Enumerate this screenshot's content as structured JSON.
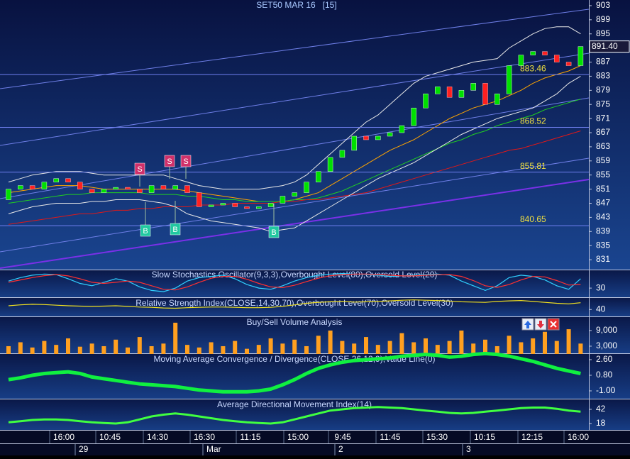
{
  "chart_data": [
    {
      "type": "candlestick",
      "title": "SET50 MAR 16   [15]",
      "open": [
        848,
        851,
        852,
        851,
        853,
        854,
        853,
        851,
        850,
        851,
        851.5,
        851,
        850,
        852,
        851,
        852,
        850,
        846,
        846.5,
        847,
        846,
        845.5,
        846,
        847,
        849,
        850,
        853,
        856,
        860,
        862,
        866,
        865,
        866,
        867,
        869,
        874,
        878,
        880,
        877,
        879,
        881,
        875,
        878,
        886,
        889,
        890,
        889,
        887,
        886
      ],
      "close": [
        851,
        852,
        851,
        853,
        854,
        853,
        851,
        850,
        851,
        851.5,
        851,
        850,
        852,
        851,
        852,
        850,
        846,
        846.5,
        847,
        846,
        845.5,
        846,
        847,
        849,
        850,
        853,
        856,
        860,
        862,
        866,
        865,
        866,
        867,
        869,
        874,
        878,
        880,
        877,
        879,
        881,
        875,
        878,
        886,
        889,
        890,
        889,
        887,
        886,
        891.4
      ],
      "up_color": "#00e000",
      "down_color": "#ff2020",
      "lines": [
        {
          "color": "#ffa500",
          "values": [
            850,
            850.5,
            851,
            851.5,
            852,
            852,
            852,
            851.5,
            851,
            851,
            851,
            851,
            851,
            851,
            851,
            850.5,
            850,
            849.5,
            849,
            848.5,
            848,
            847.5,
            847.5,
            847.5,
            848,
            849,
            850,
            852,
            854,
            856,
            858,
            860,
            862,
            863.5,
            865,
            867,
            869,
            871,
            872.5,
            874,
            875,
            876,
            877.5,
            879,
            881,
            882.5,
            883.5,
            884.5,
            886
          ]
        },
        {
          "color": "#20d020",
          "values": [
            847,
            847.5,
            848,
            848.5,
            849,
            849.5,
            849.5,
            850,
            850,
            850,
            850,
            850,
            849.5,
            849.5,
            849.5,
            849,
            849,
            848.5,
            848,
            848,
            847.5,
            847.5,
            847.5,
            847.5,
            848,
            848,
            848.5,
            849.5,
            850.5,
            852,
            853.5,
            855,
            856.5,
            858,
            859.5,
            861,
            862.5,
            864,
            865,
            866.5,
            867.5,
            869,
            870,
            871,
            872,
            873.5,
            874.5,
            875.5,
            876.5
          ]
        },
        {
          "color": "#e01818",
          "values": [
            841,
            841.5,
            842,
            842.5,
            843,
            843.5,
            844,
            844,
            844.5,
            845,
            845,
            845.5,
            845.5,
            846,
            846,
            846,
            846.5,
            846.5,
            846.5,
            847,
            847,
            847,
            847,
            847.5,
            847.5,
            848,
            848,
            848.5,
            849,
            849.5,
            850,
            851,
            852,
            853,
            854,
            855,
            856,
            857,
            858,
            859,
            860,
            861,
            862,
            862.5,
            863.5,
            864.5,
            865.5,
            866.5,
            867.5
          ]
        },
        {
          "color": "#e8e8e8",
          "values": [
            853,
            854,
            855,
            855.5,
            856,
            856,
            856,
            855.5,
            855,
            855,
            855,
            855,
            855,
            855,
            854,
            853,
            852,
            851.5,
            851,
            851,
            851,
            851,
            851.5,
            852,
            853,
            855,
            858,
            861,
            864,
            867,
            870,
            872,
            875,
            878,
            881,
            883,
            884,
            885,
            886,
            887,
            887.5,
            888,
            891,
            893,
            895,
            896.5,
            897,
            897,
            895
          ]
        },
        {
          "color": "#e8e8e8",
          "values": [
            844,
            845,
            846,
            846.5,
            847,
            847,
            847,
            847.5,
            847.5,
            848,
            848,
            848,
            847.5,
            847,
            846,
            844,
            843,
            842,
            841.5,
            841,
            840.5,
            840,
            839,
            839.5,
            840,
            842,
            844,
            846,
            848,
            850,
            852,
            854,
            855.5,
            857,
            858.5,
            860.5,
            862.5,
            864.5,
            866.5,
            868,
            869.5,
            871,
            872,
            873,
            874,
            876,
            878,
            881,
            883
          ]
        }
      ],
      "levels": [
        883.46,
        868.52,
        855.81,
        840.65
      ],
      "last_price": {
        "value": 891.4,
        "label": "891.40"
      },
      "signals": [
        "S",
        "S",
        "S",
        "B",
        "B",
        "B"
      ],
      "ylim": [
        828.2,
        904.6
      ],
      "yticks": [
        903,
        899,
        895,
        891,
        887,
        883,
        879,
        875,
        871,
        867,
        863,
        859,
        855,
        851,
        847,
        843,
        839,
        835,
        831
      ],
      "time_labels": [
        "16:00",
        "10:45",
        "14:30",
        "16:30",
        "11:15",
        "15:00",
        "9:45",
        "11:45",
        "15:30",
        "10:15",
        "12:15",
        "16:00"
      ],
      "date_labels": [
        "29",
        "Mar",
        "2",
        "3"
      ]
    },
    {
      "type": "line",
      "title": "Slow Stochastics Oscillator(9,3,3),Overbought Level(80),Oversold Level(20)",
      "series": [
        {
          "color": "#30d0ff",
          "values": [
            60,
            75,
            85,
            90,
            88,
            70,
            50,
            40,
            55,
            70,
            60,
            35,
            20,
            15,
            30,
            60,
            75,
            80,
            85,
            70,
            45,
            30,
            25,
            40,
            60,
            75,
            85,
            90,
            92,
            90,
            88,
            85,
            80,
            82,
            85,
            88,
            90,
            85,
            60,
            40,
            20,
            40,
            75,
            85,
            80,
            65,
            40,
            25,
            70
          ]
        },
        {
          "color": "#ff3030",
          "values": [
            55,
            65,
            75,
            83,
            88,
            82,
            70,
            55,
            50,
            55,
            60,
            55,
            40,
            25,
            22,
            35,
            55,
            72,
            80,
            80,
            68,
            50,
            35,
            32,
            42,
            58,
            72,
            83,
            88,
            90,
            90,
            88,
            85,
            82,
            82,
            85,
            87,
            88,
            80,
            62,
            40,
            33,
            45,
            65,
            80,
            78,
            62,
            43,
            45
          ]
        }
      ],
      "ylim": [
        0,
        100
      ],
      "yticks": [
        30
      ]
    },
    {
      "type": "line",
      "title": "Relative Strength Index(CLOSE,14,30,70),Overbought Level(70),Oversold Level(30)",
      "series": [
        {
          "color": "#f0e020",
          "values": [
            52,
            55,
            57,
            56,
            54,
            52,
            51,
            50,
            51,
            52,
            50,
            48,
            47,
            45,
            44,
            46,
            47,
            48,
            48,
            47,
            46,
            46,
            47,
            50,
            55,
            60,
            63,
            65,
            66,
            64,
            65,
            66,
            68,
            70,
            71,
            70,
            69,
            67,
            65,
            64,
            63,
            66,
            68,
            69,
            66,
            63,
            60,
            58,
            62
          ]
        }
      ],
      "ylim": [
        20,
        75
      ],
      "yticks": [
        40
      ]
    },
    {
      "type": "bar",
      "title": "Buy/Sell Volume Analysis",
      "color": "#ffa020",
      "values": [
        3000,
        4500,
        2500,
        5000,
        3500,
        6000,
        2800,
        4000,
        3000,
        5500,
        2500,
        6500,
        3000,
        4000,
        12000,
        3500,
        2500,
        4500,
        3000,
        5000,
        2000,
        3500,
        6000,
        4000,
        5500,
        3000,
        7000,
        9000,
        5000,
        4000,
        6500,
        3500,
        5000,
        8000,
        4500,
        6000,
        3500,
        5000,
        9000,
        4000,
        5500,
        3000,
        7000,
        4500,
        6000,
        8500,
        5000,
        9500,
        4000
      ],
      "ylim": [
        0,
        13600
      ],
      "yticks": [
        {
          "value": 9000,
          "label": "9,000"
        },
        {
          "value": 3000,
          "label": "3,000"
        }
      ]
    },
    {
      "type": "line",
      "title": "Moving Average Convergence / Divergence(CLOSE,26,12,9),Value Line(0)",
      "series": [
        {
          "color": "#10f040",
          "values": [
            0.3,
            0.5,
            0.8,
            1.0,
            1.1,
            1.2,
            1.0,
            0.6,
            0.4,
            0.2,
            0.0,
            -0.2,
            -0.3,
            -0.4,
            -0.5,
            -0.7,
            -0.9,
            -1.0,
            -1.1,
            -1.1,
            -1.1,
            -1.0,
            -0.8,
            -0.3,
            0.3,
            1.0,
            1.6,
            2.0,
            2.3,
            2.5,
            2.6,
            2.7,
            2.8,
            3.0,
            3.1,
            3.2,
            3.1,
            2.9,
            3.0,
            3.2,
            3.3,
            3.2,
            3.0,
            2.7,
            2.4,
            2.0,
            1.6,
            1.3,
            1.0
          ]
        }
      ],
      "ylim": [
        -1.82,
        3.17
      ],
      "yticks": [
        {
          "value": 2.6,
          "label": "2.60"
        },
        {
          "value": 0.8,
          "label": "0.80"
        },
        {
          "value": -1,
          "label": "-1.00"
        }
      ]
    },
    {
      "type": "line",
      "title": "Average Directional Movement Index(14)",
      "series": [
        {
          "color": "#40ff40",
          "values": [
            20,
            22,
            24,
            25,
            25,
            24,
            22,
            20,
            19,
            18,
            20,
            25,
            30,
            33,
            35,
            33,
            30,
            27,
            24,
            22,
            20,
            19,
            18,
            20,
            25,
            30,
            35,
            40,
            42,
            44,
            45,
            46,
            45,
            44,
            42,
            40,
            38,
            36,
            35,
            36,
            38,
            40,
            42,
            44,
            45,
            45,
            43,
            40,
            38
          ]
        }
      ],
      "ylim": [
        8.4,
        57.6
      ],
      "yticks": [
        42,
        18
      ]
    }
  ]
}
